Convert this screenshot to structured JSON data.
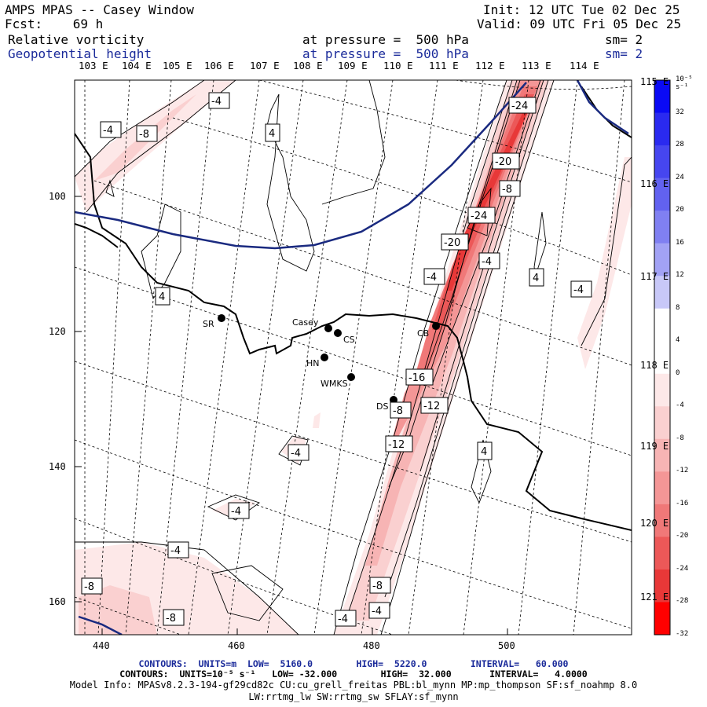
{
  "header": {
    "title": "AMPS MPAS -- Casey Window",
    "fcst": "Fcst:    69 h",
    "init": "Init: 12 UTC Tue 02 Dec 25",
    "valid": "Valid: 09 UTC Fri 05 Dec 25",
    "field1": {
      "name": "Relative vorticity",
      "pressure": "at pressure =  500 hPa",
      "sm": "sm= 2"
    },
    "field2": {
      "name": "Geopotential height",
      "pressure": "at pressure =  500 hPa",
      "sm": "sm= 2"
    }
  },
  "map": {
    "longitude_labels": [
      "103 E",
      "104 E",
      "105 E",
      "106 E",
      "107 E",
      "108 E",
      "109 E",
      "110 E",
      "111 E",
      "112 E",
      "113 E",
      "114 E"
    ],
    "right_latitude_labels": [
      "115 E",
      "116 E",
      "117 E",
      "118 E",
      "119 E",
      "120 E",
      "121 E"
    ],
    "y_axis_ticks": [
      "100",
      "120",
      "140",
      "160"
    ],
    "x_axis_ticks": [
      "440",
      "460",
      "480",
      "500"
    ],
    "stations": [
      {
        "name": "SR"
      },
      {
        "name": "Casey"
      },
      {
        "name": "CS"
      },
      {
        "name": "HN"
      },
      {
        "name": "WMKS"
      },
      {
        "name": "DS"
      },
      {
        "name": "CB"
      }
    ],
    "contour_labels": [
      "-4",
      "-4",
      "-8",
      "4",
      "-24",
      "-20",
      "-8",
      "-24",
      "-20",
      "-4",
      "-4",
      "4",
      "-4",
      "4",
      "-16",
      "-8",
      "-12",
      "-12",
      "4",
      "-4",
      "-4",
      "-4",
      "-8",
      "-8",
      "-8",
      "-4",
      "-4"
    ],
    "colors": {
      "height_contour": "#1a2a80",
      "coast": "#000000",
      "neg_vort": "#e03030",
      "pos_vort": "#3040e0"
    }
  },
  "colorbar": {
    "units": "10⁻⁵ s⁻¹",
    "labels": [
      "32",
      "28",
      "24",
      "20",
      "16",
      "12",
      "8",
      "4",
      "0",
      "-4",
      "-8",
      "-12",
      "-16",
      "-20",
      "-24",
      "-28",
      "-32"
    ],
    "colors": [
      "#0a0af5",
      "#2a2af0",
      "#4646f0",
      "#6262f0",
      "#8080f2",
      "#a2a2f5",
      "#c8c8f8",
      "#ffffff",
      "#ffffff",
      "#fde8e8",
      "#fad0d0",
      "#f7b4b4",
      "#f49696",
      "#f07878",
      "#ec5858",
      "#e83838",
      "#ff0000"
    ]
  },
  "footer": {
    "line1": "CONTOURS:  UNITS=m  LOW=  5160.0        HIGH=  5220.0        INTERVAL=   60.000",
    "line2": "CONTOURS:  UNITS=10⁻⁵ s⁻¹   LOW= -32.000        HIGH=  32.000       INTERVAL=   4.0000",
    "line3": "Model Info: MPASv8.2.3-194-gf29cd82c CU:cu_grell_freitas PBL:bl_mynn MP:mp_thompson SF:sf_noahmp 8.0",
    "line4": "LW:rrtmg_lw SW:rrtmg_sw SFLAY:sf_mynn"
  }
}
